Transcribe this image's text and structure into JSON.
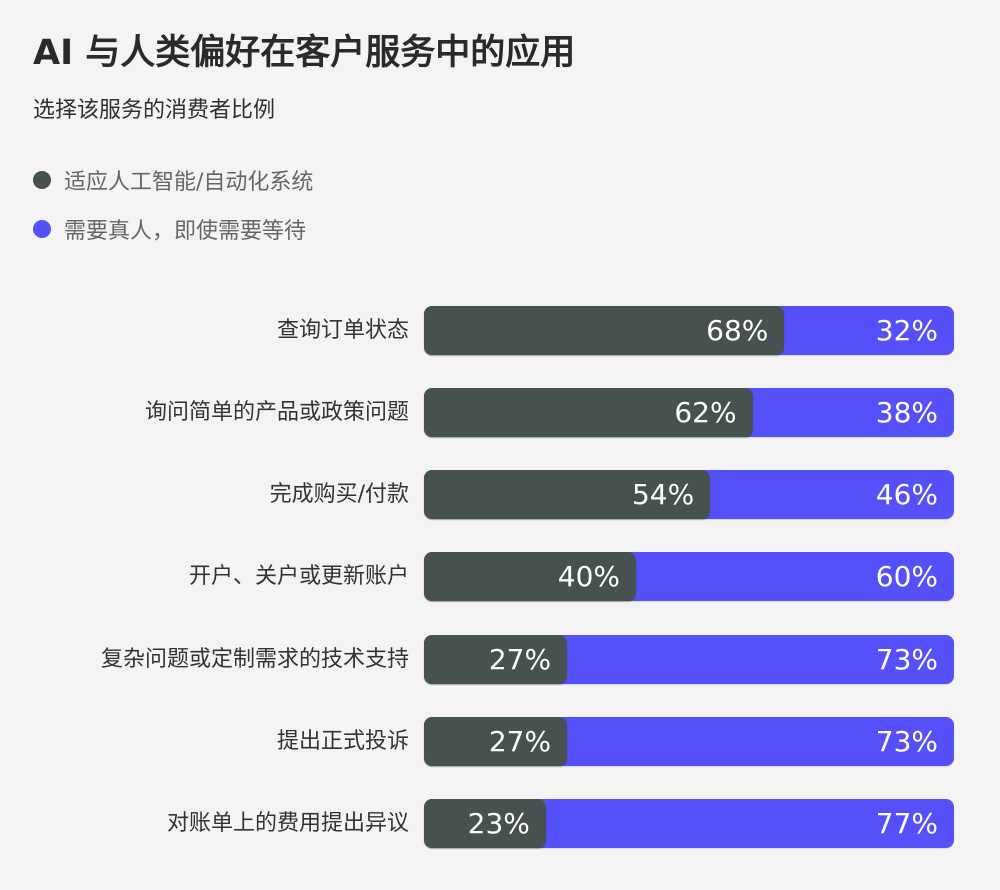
{
  "header": {
    "title": "AI 与人类偏好在客户服务中的应用",
    "subtitle": "选择该服务的消费者比例"
  },
  "legend": {
    "items": [
      {
        "label": "适应人工智能/自动化系统",
        "color": "#475250"
      },
      {
        "label": "需要真人，即使需要等待",
        "color": "#5650FA"
      }
    ]
  },
  "colors": {
    "ai": "#475250",
    "human": "#5650FA",
    "background": "#F4F4F4",
    "value_text": "#FFFFFF"
  },
  "rows": [
    {
      "label": "查询订单状态",
      "ai": 68,
      "human": 32,
      "ai_text": "68%",
      "human_text": "32%"
    },
    {
      "label": "询问简单的产品或政策问题",
      "ai": 62,
      "human": 38,
      "ai_text": "62%",
      "human_text": "38%"
    },
    {
      "label": "完成购买/付款",
      "ai": 54,
      "human": 46,
      "ai_text": "54%",
      "human_text": "46%"
    },
    {
      "label": "开户、关户或更新账户",
      "ai": 40,
      "human": 60,
      "ai_text": "40%",
      "human_text": "60%"
    },
    {
      "label": "复杂问题或定制需求的技术支持",
      "ai": 27,
      "human": 73,
      "ai_text": "27%",
      "human_text": "73%"
    },
    {
      "label": "提出正式投诉",
      "ai": 27,
      "human": 73,
      "ai_text": "27%",
      "human_text": "73%"
    },
    {
      "label": "对账单上的费用提出异议",
      "ai": 23,
      "human": 77,
      "ai_text": "23%",
      "human_text": "77%"
    }
  ],
  "chart_data": {
    "type": "bar",
    "orientation": "horizontal",
    "stacked": true,
    "normalized": true,
    "title": "AI 与人类偏好在客户服务中的应用",
    "subtitle": "选择该服务的消费者比例",
    "xlabel": "",
    "ylabel": "",
    "xlim": [
      0,
      100
    ],
    "grid": false,
    "legend_position": "top-left",
    "categories": [
      "查询订单状态",
      "询问简单的产品或政策问题",
      "完成购买/付款",
      "开户、关户或更新账户",
      "复杂问题或定制需求的技术支持",
      "提出正式投诉",
      "对账单上的费用提出异议"
    ],
    "series": [
      {
        "name": "适应人工智能/自动化系统",
        "color": "#475250",
        "values": [
          68,
          62,
          54,
          40,
          27,
          27,
          23
        ]
      },
      {
        "name": "需要真人，即使需要等待",
        "color": "#5650FA",
        "values": [
          32,
          38,
          46,
          60,
          73,
          73,
          77
        ]
      }
    ],
    "value_labels": true,
    "value_format": "{v}%"
  }
}
